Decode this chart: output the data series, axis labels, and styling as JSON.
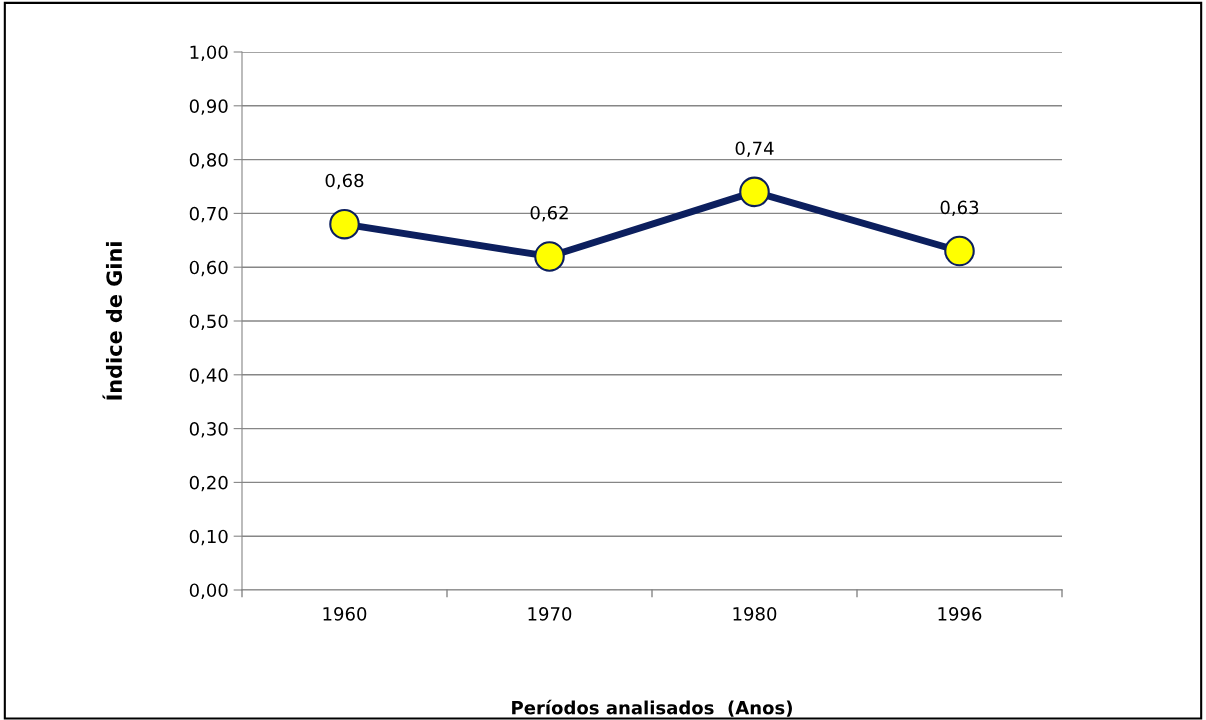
{
  "chart_data": {
    "type": "line",
    "xlabel": "Períodos analisados  (Anos)",
    "ylabel": "Índice de Gini",
    "categories": [
      "1960",
      "1970",
      "1980",
      "1996"
    ],
    "series": [
      {
        "color": "#0c1f5e",
        "colors": [
          "#ffff00",
          "#ffff00",
          "#ffff00",
          "#ffff00"
        ],
        "values": [
          0.68,
          0.62,
          0.74,
          0.63
        ],
        "value_labels": [
          "0,68",
          "0,62",
          "0,74",
          "0,63"
        ]
      }
    ],
    "ylim": [
      0,
      1
    ],
    "yticks": [
      {
        "value": 0,
        "label": "0,00"
      },
      {
        "value": 0.1,
        "label": "0,10"
      },
      {
        "value": 0.2,
        "label": "0,20"
      },
      {
        "value": 0.3,
        "label": "0,30"
      },
      {
        "value": 0.4,
        "label": "0,40"
      },
      {
        "value": 0.5,
        "label": "0,50"
      },
      {
        "value": 0.6,
        "label": "0,60"
      },
      {
        "value": 0.7,
        "label": "0,70"
      },
      {
        "value": 0.8,
        "label": "0,80"
      },
      {
        "value": 0.9,
        "label": "0,90"
      },
      {
        "value": 1,
        "label": "1,00"
      }
    ],
    "grid": "y",
    "marker": "circle",
    "line_style": "solid"
  }
}
